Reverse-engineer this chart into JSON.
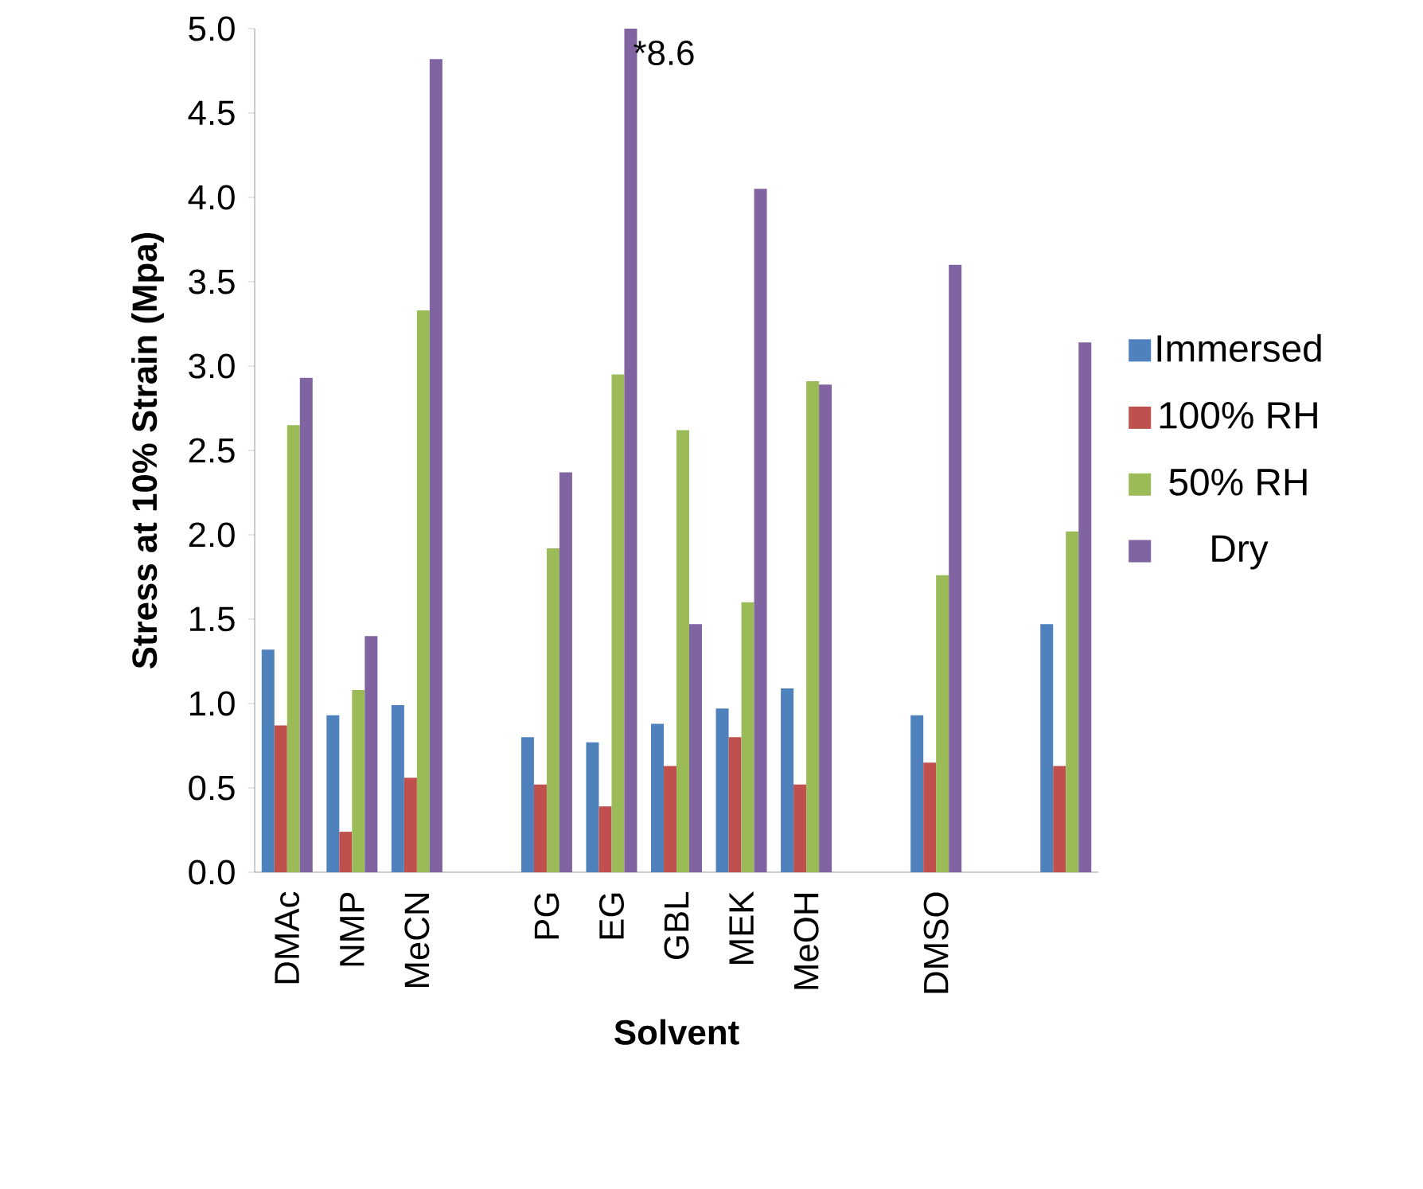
{
  "chart_data": {
    "type": "bar",
    "xlabel": "Solvent",
    "ylabel": "Stress at 10% Strain (Mpa)",
    "categories": [
      "DMAc",
      "NMP",
      "MeCN",
      null,
      "PG",
      "EG",
      "GBL",
      "MEK",
      "MeOH",
      null,
      "DMSO",
      null,
      null
    ],
    "series": [
      {
        "name": "Immersed",
        "color": "#4f81bd",
        "values": [
          1.32,
          0.93,
          0.99,
          null,
          0.8,
          0.77,
          0.88,
          0.97,
          1.09,
          null,
          0.93,
          null,
          1.47
        ]
      },
      {
        "name": "100% RH",
        "color": "#c0504d",
        "values": [
          0.87,
          0.24,
          0.56,
          null,
          0.52,
          0.39,
          0.63,
          0.8,
          0.52,
          null,
          0.65,
          null,
          0.63
        ]
      },
      {
        "name": "50% RH",
        "color": "#9bbb59",
        "values": [
          2.65,
          1.08,
          3.33,
          null,
          1.92,
          2.95,
          2.62,
          1.6,
          2.91,
          null,
          1.76,
          null,
          2.02
        ]
      },
      {
        "name": "Dry",
        "color": "#8064a2",
        "values": [
          2.93,
          1.4,
          4.82,
          null,
          2.37,
          5.0,
          1.47,
          4.05,
          2.89,
          null,
          3.6,
          null,
          3.14
        ]
      }
    ],
    "ylim": [
      0,
      5.0
    ],
    "yticks": [
      {
        "value": 0,
        "label": "0.0"
      },
      {
        "value": 0.5,
        "label": "0.5"
      },
      {
        "value": 1.0,
        "label": "1.0"
      },
      {
        "value": 1.5,
        "label": "1.5"
      },
      {
        "value": 2.0,
        "label": "2.0"
      },
      {
        "value": 2.5,
        "label": "2.5"
      },
      {
        "value": 3.0,
        "label": "3.0"
      },
      {
        "value": 3.5,
        "label": "3.5"
      },
      {
        "value": 4.0,
        "label": "4.0"
      },
      {
        "value": 4.5,
        "label": "4.5"
      },
      {
        "value": 5.0,
        "label": "5.0"
      }
    ],
    "annotations": [
      "*8.6"
    ],
    "legend": "right",
    "grid": false
  }
}
